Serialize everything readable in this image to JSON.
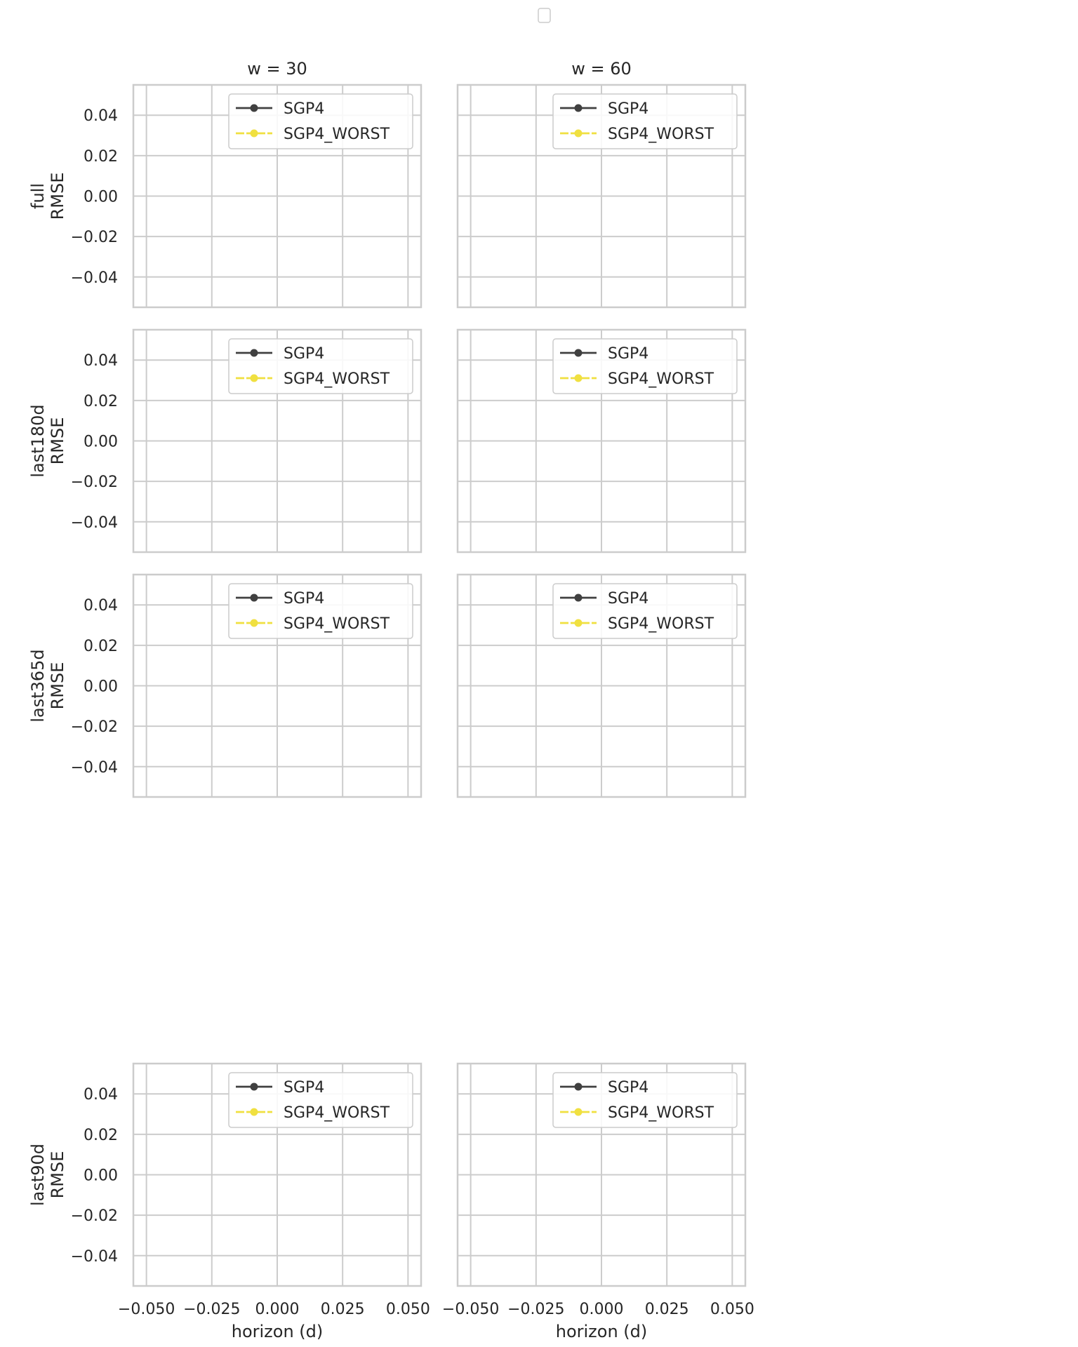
{
  "figure": {
    "top_legend_box": "",
    "colors": {
      "grid": "#cccccc",
      "frame": "#cccccc",
      "text": "#262626",
      "legend_border": "#cccccc"
    }
  },
  "chart_data": {
    "type": "line",
    "layout": "faceted grid, 4 rows x 2 columns, shared axes",
    "column_titles": [
      "w = 30",
      "w = 60"
    ],
    "row_labels": [
      "full\nRMSE",
      "last180d\nRMSE",
      "last365d\nRMSE",
      "last90d\nRMSE"
    ],
    "xlabel": "horizon (d)",
    "xlim": [
      -0.055,
      0.055
    ],
    "ylim": [
      -0.055,
      0.055
    ],
    "xticks": [
      -0.05,
      -0.025,
      0.0,
      0.025,
      0.05
    ],
    "xtick_labels": [
      "−0.050",
      "−0.025",
      "0.000",
      "0.025",
      "0.050"
    ],
    "yticks": [
      0.04,
      0.02,
      0.0,
      -0.02,
      -0.04
    ],
    "ytick_labels": [
      "0.04",
      "0.02",
      "0.00",
      "−0.02",
      "−0.04"
    ],
    "grid": true,
    "legend_position": "upper right",
    "series": [
      {
        "name": "SGP4",
        "color": "#404040",
        "marker": "circle",
        "values": []
      },
      {
        "name": "SGP4_WORST",
        "color": "#f0e040",
        "marker": "circle",
        "values": []
      }
    ]
  }
}
